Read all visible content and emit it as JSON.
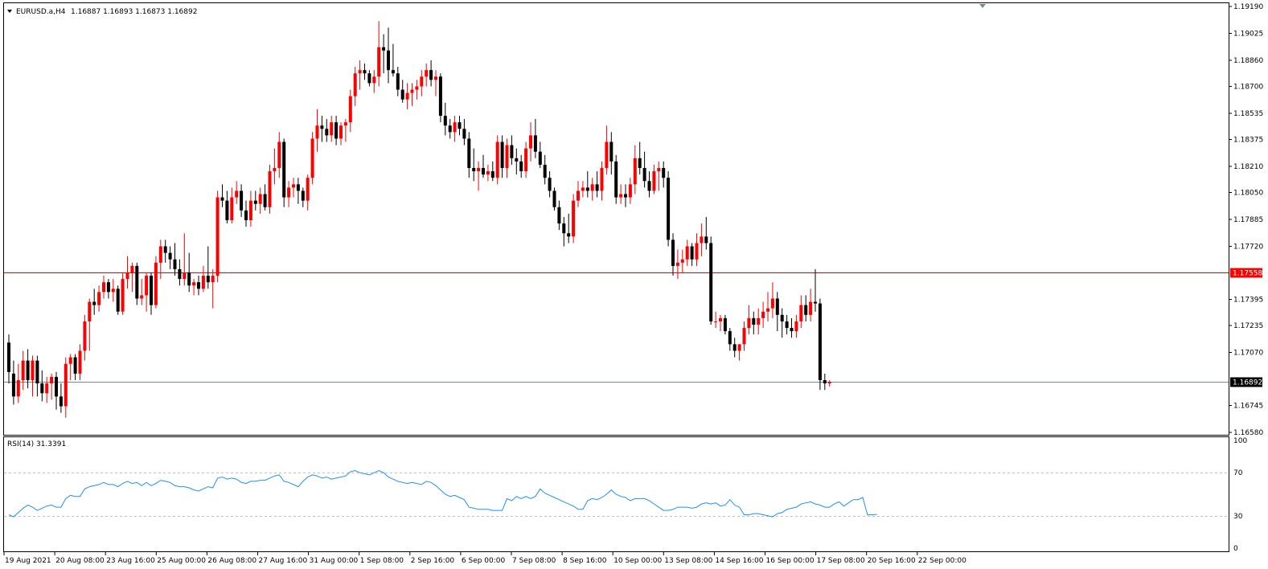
{
  "header": {
    "symbol_label": "EURUSD.a,H4",
    "ohlc_text": "1.16887 1.16893 1.16873 1.16892"
  },
  "colors": {
    "bull": "#ff0000",
    "bear": "#000000",
    "rsi_line": "#1e90ff",
    "level_line": "#ff0000",
    "bid_line": "#778899",
    "grid_dash": "#c0c0c0",
    "frame": "#000000"
  },
  "chart_data": [
    {
      "type": "candlestick",
      "title": "EURUSD.a,H4",
      "ylim": [
        1.1658,
        1.1919
      ],
      "yticks": [
        "1.19190",
        "1.19025",
        "1.18860",
        "1.18700",
        "1.18535",
        "1.18375",
        "1.18210",
        "1.18050",
        "1.17885",
        "1.17720",
        "1.17395",
        "1.17235",
        "1.17070",
        "1.16745",
        "1.16580"
      ],
      "xticks": [
        "19 Aug 2021",
        "20 Aug 08:00",
        "23 Aug 16:00",
        "25 Aug 00:00",
        "26 Aug 08:00",
        "27 Aug 16:00",
        "31 Aug 00:00",
        "1 Sep 08:00",
        "2 Sep 16:00",
        "6 Sep 00:00",
        "7 Sep 08:00",
        "8 Sep 16:00",
        "10 Sep 00:00",
        "13 Sep 08:00",
        "14 Sep 16:00",
        "16 Sep 00:00",
        "17 Sep 08:00",
        "20 Sep 16:00",
        "22 Sep 00:00"
      ],
      "bar_interval": "H4",
      "horizontal_levels": [
        {
          "value": 1.17558,
          "label": "1.17558",
          "kind": "level"
        },
        {
          "value": 1.16892,
          "label": "1.16892",
          "kind": "bid"
        }
      ],
      "ohlc": [
        [
          1.1713,
          1.1718,
          1.1688,
          1.1695
        ],
        [
          1.1694,
          1.1702,
          1.1675,
          1.168
        ],
        [
          1.168,
          1.17,
          1.1676,
          1.169
        ],
        [
          1.169,
          1.1708,
          1.1684,
          1.1702
        ],
        [
          1.1702,
          1.1709,
          1.1685,
          1.169
        ],
        [
          1.169,
          1.1705,
          1.168,
          1.1702
        ],
        [
          1.1702,
          1.1705,
          1.168,
          1.1688
        ],
        [
          1.1688,
          1.1696,
          1.1677,
          1.1682
        ],
        [
          1.1682,
          1.1692,
          1.1676,
          1.1688
        ],
        [
          1.1688,
          1.1694,
          1.1678,
          1.1692
        ],
        [
          1.1692,
          1.1695,
          1.1672,
          1.168
        ],
        [
          1.168,
          1.1688,
          1.167,
          1.1674
        ],
        [
          1.1674,
          1.1704,
          1.1667,
          1.17
        ],
        [
          1.17,
          1.1706,
          1.169,
          1.1704
        ],
        [
          1.1704,
          1.1706,
          1.169,
          1.1694
        ],
        [
          1.1694,
          1.1712,
          1.169,
          1.1708
        ],
        [
          1.1708,
          1.173,
          1.1702,
          1.1726
        ],
        [
          1.1726,
          1.174,
          1.1708,
          1.1738
        ],
        [
          1.1738,
          1.1746,
          1.173,
          1.1736
        ],
        [
          1.1736,
          1.1748,
          1.1732,
          1.1744
        ],
        [
          1.1744,
          1.1754,
          1.174,
          1.175
        ],
        [
          1.175,
          1.1752,
          1.174,
          1.1744
        ],
        [
          1.1744,
          1.1752,
          1.1738,
          1.1746
        ],
        [
          1.1746,
          1.1748,
          1.173,
          1.1732
        ],
        [
          1.1732,
          1.1756,
          1.173,
          1.1752
        ],
        [
          1.1752,
          1.1766,
          1.1746,
          1.1756
        ],
        [
          1.1756,
          1.1762,
          1.1744,
          1.176
        ],
        [
          1.176,
          1.1762,
          1.1736,
          1.174
        ],
        [
          1.174,
          1.1752,
          1.1736,
          1.1742
        ],
        [
          1.1742,
          1.1756,
          1.1732,
          1.1754
        ],
        [
          1.1754,
          1.1756,
          1.173,
          1.1736
        ],
        [
          1.1736,
          1.1766,
          1.1734,
          1.1762
        ],
        [
          1.1762,
          1.1776,
          1.1752,
          1.1772
        ],
        [
          1.1772,
          1.1776,
          1.1762,
          1.1768
        ],
        [
          1.1768,
          1.1772,
          1.1758,
          1.1764
        ],
        [
          1.1764,
          1.1774,
          1.1754,
          1.1758
        ],
        [
          1.1758,
          1.1764,
          1.1748,
          1.1752
        ],
        [
          1.1752,
          1.178,
          1.1748,
          1.1756
        ],
        [
          1.1756,
          1.1768,
          1.1744,
          1.1748
        ],
        [
          1.1748,
          1.1752,
          1.1742,
          1.175
        ],
        [
          1.175,
          1.1754,
          1.1742,
          1.1746
        ],
        [
          1.1746,
          1.176,
          1.1744,
          1.1754
        ],
        [
          1.1754,
          1.1772,
          1.1746,
          1.175
        ],
        [
          1.175,
          1.1758,
          1.1734,
          1.1754
        ],
        [
          1.1754,
          1.1806,
          1.175,
          1.1802
        ],
        [
          1.1802,
          1.181,
          1.1796,
          1.18
        ],
        [
          1.18,
          1.1806,
          1.1786,
          1.1788
        ],
        [
          1.1788,
          1.1808,
          1.1786,
          1.1802
        ],
        [
          1.1802,
          1.1812,
          1.1798,
          1.1806
        ],
        [
          1.1806,
          1.181,
          1.179,
          1.1794
        ],
        [
          1.1794,
          1.18,
          1.1784,
          1.1788
        ],
        [
          1.1788,
          1.1806,
          1.1784,
          1.18
        ],
        [
          1.18,
          1.1806,
          1.1794,
          1.1798
        ],
        [
          1.1798,
          1.1808,
          1.1792,
          1.1804
        ],
        [
          1.1804,
          1.181,
          1.1794,
          1.1796
        ],
        [
          1.1796,
          1.1822,
          1.1792,
          1.1818
        ],
        [
          1.1818,
          1.1832,
          1.181,
          1.182
        ],
        [
          1.182,
          1.1842,
          1.1814,
          1.1836
        ],
        [
          1.1836,
          1.1838,
          1.1796,
          1.1802
        ],
        [
          1.1802,
          1.1812,
          1.1796,
          1.1808
        ],
        [
          1.1808,
          1.1814,
          1.1802,
          1.181
        ],
        [
          1.181,
          1.1814,
          1.1798,
          1.1806
        ],
        [
          1.1806,
          1.1808,
          1.1796,
          1.18
        ],
        [
          1.18,
          1.1816,
          1.1794,
          1.1814
        ],
        [
          1.1814,
          1.1842,
          1.181,
          1.1838
        ],
        [
          1.1838,
          1.1856,
          1.183,
          1.1846
        ],
        [
          1.1846,
          1.1852,
          1.1836,
          1.1844
        ],
        [
          1.1844,
          1.185,
          1.1836,
          1.184
        ],
        [
          1.184,
          1.1852,
          1.1836,
          1.1848
        ],
        [
          1.1848,
          1.1852,
          1.1834,
          1.1838
        ],
        [
          1.1838,
          1.1848,
          1.1834,
          1.1846
        ],
        [
          1.1846,
          1.185,
          1.1836,
          1.1848
        ],
        [
          1.1848,
          1.1868,
          1.1842,
          1.1864
        ],
        [
          1.1864,
          1.1882,
          1.1858,
          1.1878
        ],
        [
          1.1878,
          1.1886,
          1.1868,
          1.188
        ],
        [
          1.188,
          1.1884,
          1.1874,
          1.1878
        ],
        [
          1.1878,
          1.188,
          1.187,
          1.1872
        ],
        [
          1.1872,
          1.188,
          1.1866,
          1.1876
        ],
        [
          1.1876,
          1.191,
          1.187,
          1.1894
        ],
        [
          1.1894,
          1.1902,
          1.1878,
          1.1892
        ],
        [
          1.1892,
          1.1906,
          1.1872,
          1.188
        ],
        [
          1.188,
          1.1896,
          1.1876,
          1.1878
        ],
        [
          1.1878,
          1.1882,
          1.1864,
          1.1868
        ],
        [
          1.1868,
          1.1874,
          1.186,
          1.1862
        ],
        [
          1.1862,
          1.1872,
          1.1856,
          1.1866
        ],
        [
          1.1866,
          1.1872,
          1.1858,
          1.1868
        ],
        [
          1.1868,
          1.1874,
          1.1862,
          1.187
        ],
        [
          1.187,
          1.188,
          1.1864,
          1.1876
        ],
        [
          1.1876,
          1.1884,
          1.187,
          1.188
        ],
        [
          1.188,
          1.1886,
          1.187,
          1.1874
        ],
        [
          1.1874,
          1.188,
          1.1864,
          1.1876
        ],
        [
          1.1876,
          1.1878,
          1.1848,
          1.1852
        ],
        [
          1.1852,
          1.186,
          1.184,
          1.1846
        ],
        [
          1.1846,
          1.185,
          1.1838,
          1.1842
        ],
        [
          1.1842,
          1.1852,
          1.1836,
          1.1848
        ],
        [
          1.1848,
          1.1852,
          1.184,
          1.1844
        ],
        [
          1.1844,
          1.185,
          1.1834,
          1.1838
        ],
        [
          1.1838,
          1.1842,
          1.1814,
          1.182
        ],
        [
          1.182,
          1.1832,
          1.1812,
          1.1818
        ],
        [
          1.1818,
          1.1824,
          1.1806,
          1.182
        ],
        [
          1.182,
          1.1828,
          1.1814,
          1.1816
        ],
        [
          1.1816,
          1.1822,
          1.1812,
          1.1818
        ],
        [
          1.1818,
          1.1824,
          1.1812,
          1.1814
        ],
        [
          1.1814,
          1.184,
          1.181,
          1.1836
        ],
        [
          1.1836,
          1.184,
          1.1814,
          1.182
        ],
        [
          1.182,
          1.1838,
          1.1814,
          1.1834
        ],
        [
          1.1834,
          1.184,
          1.1822,
          1.1826
        ],
        [
          1.1826,
          1.1832,
          1.1816,
          1.1824
        ],
        [
          1.1824,
          1.1828,
          1.1814,
          1.1818
        ],
        [
          1.1818,
          1.1836,
          1.1814,
          1.1832
        ],
        [
          1.1832,
          1.1848,
          1.1824,
          1.184
        ],
        [
          1.184,
          1.185,
          1.1826,
          1.183
        ],
        [
          1.183,
          1.1836,
          1.182,
          1.1822
        ],
        [
          1.1822,
          1.1828,
          1.181,
          1.1814
        ],
        [
          1.1814,
          1.1818,
          1.1802,
          1.1806
        ],
        [
          1.1806,
          1.1808,
          1.1794,
          1.1796
        ],
        [
          1.1796,
          1.18,
          1.1782,
          1.1786
        ],
        [
          1.1786,
          1.179,
          1.1772,
          1.178
        ],
        [
          1.178,
          1.1792,
          1.1774,
          1.1778
        ],
        [
          1.1778,
          1.1804,
          1.1774,
          1.18
        ],
        [
          1.18,
          1.1812,
          1.1796,
          1.1806
        ],
        [
          1.1806,
          1.1812,
          1.1802,
          1.1808
        ],
        [
          1.1808,
          1.1818,
          1.1802,
          1.1806
        ],
        [
          1.1806,
          1.1814,
          1.18,
          1.181
        ],
        [
          1.181,
          1.1818,
          1.1802,
          1.1806
        ],
        [
          1.1806,
          1.1824,
          1.18,
          1.182
        ],
        [
          1.182,
          1.1846,
          1.1816,
          1.1836
        ],
        [
          1.1836,
          1.1842,
          1.1816,
          1.1824
        ],
        [
          1.1824,
          1.1828,
          1.1798,
          1.1802
        ],
        [
          1.1802,
          1.181,
          1.1798,
          1.1804
        ],
        [
          1.1804,
          1.181,
          1.1796,
          1.1802
        ],
        [
          1.1802,
          1.1814,
          1.1798,
          1.181
        ],
        [
          1.181,
          1.1834,
          1.1804,
          1.1826
        ],
        [
          1.1826,
          1.1836,
          1.1816,
          1.182
        ],
        [
          1.182,
          1.183,
          1.1808,
          1.1812
        ],
        [
          1.1812,
          1.1818,
          1.1802,
          1.1806
        ],
        [
          1.1806,
          1.1822,
          1.1804,
          1.1818
        ],
        [
          1.1818,
          1.1824,
          1.1806,
          1.182
        ],
        [
          1.182,
          1.1824,
          1.1808,
          1.1814
        ],
        [
          1.1814,
          1.1818,
          1.1772,
          1.1776
        ],
        [
          1.1776,
          1.178,
          1.1754,
          1.176
        ],
        [
          1.176,
          1.177,
          1.1752,
          1.1762
        ],
        [
          1.1762,
          1.177,
          1.1756,
          1.1764
        ],
        [
          1.1764,
          1.1776,
          1.176,
          1.1772
        ],
        [
          1.1772,
          1.1774,
          1.176,
          1.1764
        ],
        [
          1.1764,
          1.178,
          1.176,
          1.1774
        ],
        [
          1.1774,
          1.1786,
          1.1766,
          1.1778
        ],
        [
          1.1778,
          1.179,
          1.177,
          1.1774
        ],
        [
          1.1774,
          1.1778,
          1.1724,
          1.1726
        ],
        [
          1.1726,
          1.1732,
          1.1722,
          1.1726
        ],
        [
          1.1726,
          1.173,
          1.172,
          1.1728
        ],
        [
          1.1728,
          1.173,
          1.1718,
          1.172
        ],
        [
          1.172,
          1.1722,
          1.1708,
          1.1712
        ],
        [
          1.1712,
          1.1716,
          1.1704,
          1.1708
        ],
        [
          1.1708,
          1.1712,
          1.1702,
          1.1712
        ],
        [
          1.1712,
          1.1726,
          1.1708,
          1.1722
        ],
        [
          1.1722,
          1.1736,
          1.1718,
          1.1728
        ],
        [
          1.1728,
          1.1732,
          1.1718,
          1.1724
        ],
        [
          1.1724,
          1.1734,
          1.1718,
          1.1728
        ],
        [
          1.1728,
          1.1738,
          1.1722,
          1.1732
        ],
        [
          1.1732,
          1.1744,
          1.1726,
          1.1734
        ],
        [
          1.1734,
          1.175,
          1.1728,
          1.174
        ],
        [
          1.174,
          1.1744,
          1.172,
          1.173
        ],
        [
          1.173,
          1.1734,
          1.1716,
          1.1726
        ],
        [
          1.1726,
          1.173,
          1.1718,
          1.1722
        ],
        [
          1.1722,
          1.1728,
          1.1716,
          1.172
        ],
        [
          1.172,
          1.173,
          1.1716,
          1.1726
        ],
        [
          1.1726,
          1.1742,
          1.1722,
          1.1736
        ],
        [
          1.1736,
          1.1742,
          1.1726,
          1.173
        ],
        [
          1.173,
          1.1746,
          1.1726,
          1.1738
        ],
        [
          1.1738,
          1.1758,
          1.1732,
          1.1737
        ],
        [
          1.1737,
          1.174,
          1.1684,
          1.169
        ],
        [
          1.169,
          1.1694,
          1.1684,
          1.1688
        ],
        [
          1.1688,
          1.169,
          1.1686,
          1.1689
        ]
      ]
    },
    {
      "type": "line",
      "title": "RSI(14) 31.3391",
      "ylim": [
        0,
        100
      ],
      "yticks": [
        "100",
        "70",
        "30",
        "0"
      ],
      "levels": [
        70,
        30
      ],
      "values": [
        31,
        29,
        33,
        37,
        40,
        38,
        35,
        37,
        39,
        40,
        38,
        38,
        46,
        49,
        48,
        48,
        55,
        57,
        58,
        59,
        61,
        59,
        59,
        57,
        60,
        62,
        60,
        61,
        58,
        61,
        58,
        60,
        63,
        62,
        61,
        58,
        57,
        57,
        56,
        54,
        53,
        55,
        57,
        56,
        65,
        66,
        64,
        65,
        64,
        61,
        60,
        62,
        62,
        63,
        63,
        65,
        67,
        68,
        62,
        61,
        59,
        57,
        62,
        66,
        68,
        67,
        65,
        66,
        64,
        65,
        66,
        67,
        71,
        72,
        70,
        69,
        68,
        70,
        72,
        70,
        66,
        64,
        62,
        61,
        60,
        61,
        60,
        59,
        62,
        61,
        58,
        54,
        50,
        48,
        49,
        47,
        45,
        38,
        37,
        36,
        36,
        36,
        35,
        35,
        35,
        46,
        44,
        48,
        46,
        48,
        46,
        48,
        55,
        51,
        49,
        47,
        45,
        43,
        41,
        39,
        36,
        36,
        44,
        46,
        45,
        47,
        50,
        54,
        50,
        48,
        47,
        44,
        46,
        46,
        46,
        44,
        41,
        38,
        35,
        35,
        36,
        38,
        38,
        38,
        37,
        38,
        41,
        42,
        41,
        42,
        39,
        40,
        45,
        40,
        38,
        31,
        31,
        32,
        32,
        31,
        30,
        29,
        32,
        33,
        36,
        37,
        38,
        41,
        42,
        43,
        41,
        40,
        38,
        38,
        41,
        43,
        39,
        42,
        45,
        45,
        47,
        31,
        31,
        31.3391
      ]
    }
  ]
}
